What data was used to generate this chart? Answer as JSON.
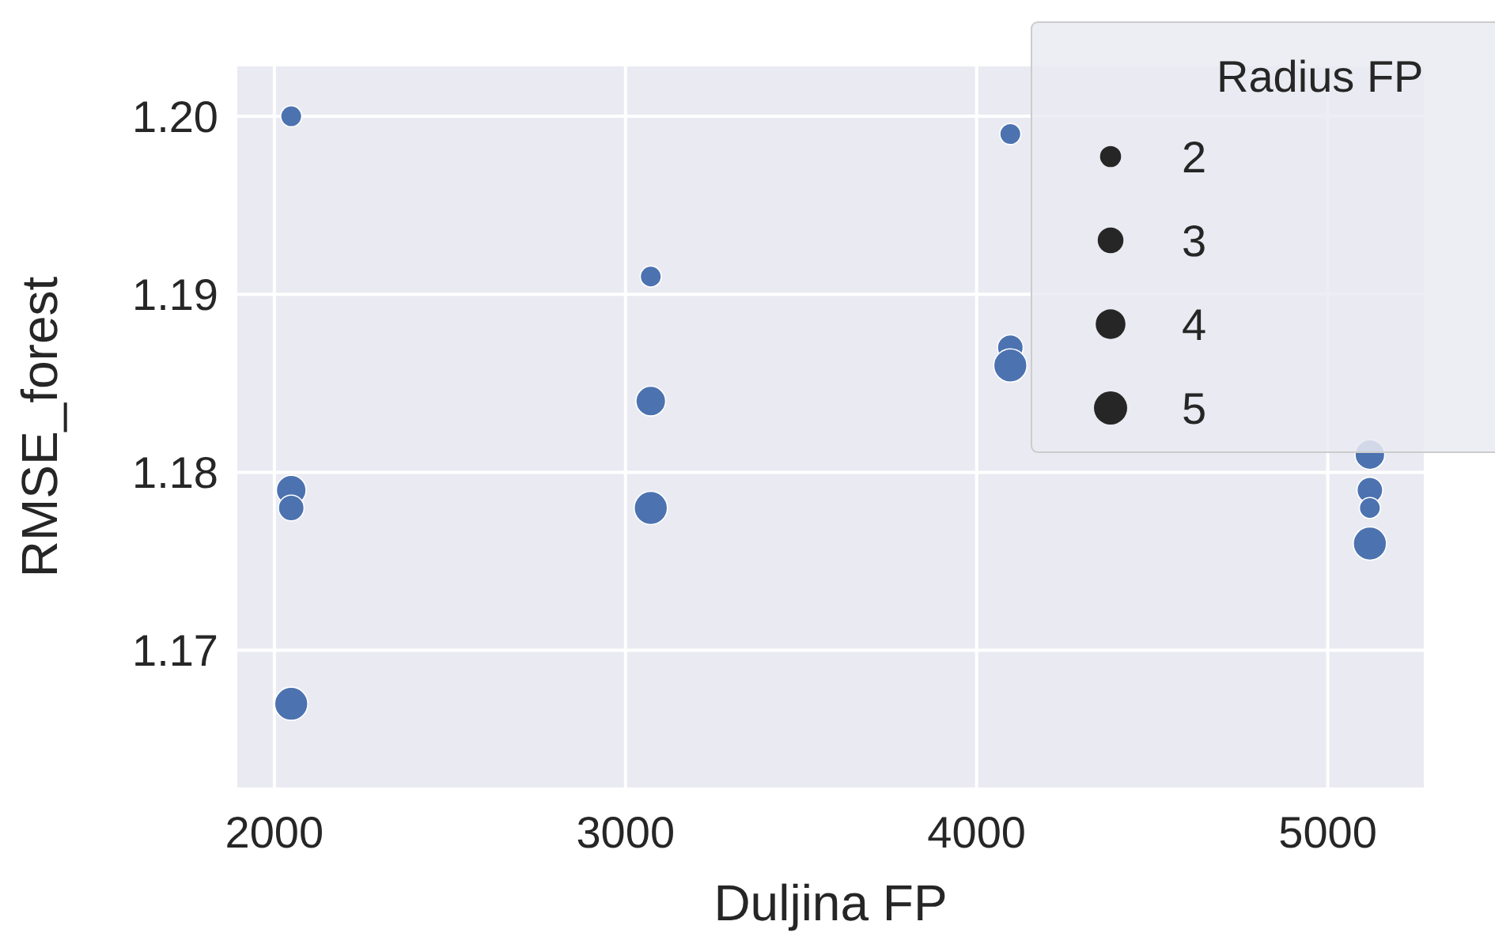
{
  "chart_data": {
    "type": "bubble",
    "xlabel": "Duljina FP",
    "ylabel": "RMSE_forest",
    "legend_title": "Radius FP",
    "grid": true,
    "xlim": [
      1894.4,
      5273.6
    ],
    "xticks": [
      2000,
      3000,
      4000,
      5000
    ],
    "ylim": [
      1.1623,
      1.2028
    ],
    "yticks": [
      1.17,
      1.18,
      1.19,
      {
        "value": 1.2,
        "label": "1.20"
      }
    ],
    "size_legend": [
      2,
      3,
      4,
      5
    ],
    "series": [
      {
        "color": "#4c72b0",
        "x": [
          2048,
          2048,
          2048,
          2048,
          3072,
          3072,
          3072,
          4096,
          4096,
          4096,
          5120,
          5120,
          5120,
          5120
        ],
        "values": [
          1.2,
          1.179,
          1.178,
          1.167,
          1.191,
          1.184,
          1.178,
          1.199,
          1.187,
          1.186,
          1.181,
          1.179,
          1.178,
          1.176
        ],
        "sizes": [
          2,
          4,
          3,
          5,
          2,
          4,
          5,
          2,
          3,
          5,
          4,
          3,
          2,
          5
        ]
      }
    ]
  }
}
